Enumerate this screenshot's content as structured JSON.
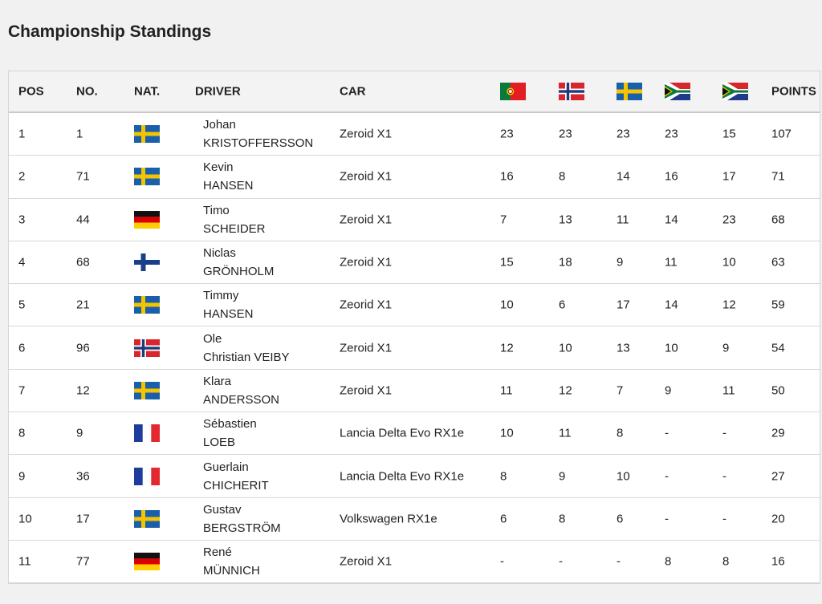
{
  "title": "Championship Standings",
  "table": {
    "header": {
      "pos": "POS",
      "no": "NO.",
      "nat": "NAT.",
      "driver": "DRIVER",
      "car": "CAR",
      "points": "POINTS"
    },
    "rows": [
      [
        1,
        1,
        "Johan",
        "KRISTOFFERSSON",
        "Zeroid X1",
        23,
        23,
        23,
        23,
        15,
        107
      ],
      [
        2,
        71,
        "Kevin",
        "HANSEN",
        "Zeroid X1",
        16,
        8,
        14,
        16,
        17,
        71
      ],
      [
        3,
        44,
        "Timo",
        "SCHEIDER",
        "Zeroid X1",
        7,
        13,
        11,
        14,
        23,
        68
      ],
      [
        4,
        68,
        "Niclas",
        "GRÖNHOLM",
        "Zeroid X1",
        15,
        18,
        9,
        11,
        10,
        63
      ],
      [
        5,
        21,
        "Timmy",
        "HANSEN",
        "Zeorid X1",
        10,
        6,
        17,
        14,
        12,
        59
      ],
      [
        6,
        96,
        "Ole",
        "Christian VEIBY",
        "Zeroid X1",
        12,
        10,
        13,
        10,
        9,
        54
      ],
      [
        7,
        12,
        "Klara",
        "ANDERSSON",
        "Zeroid X1",
        11,
        12,
        7,
        9,
        11,
        50
      ],
      [
        8,
        9,
        "Sébastien",
        "LOEB",
        "Lancia Delta Evo RX1e",
        10,
        11,
        8,
        "-",
        "-",
        29
      ],
      [
        9,
        36,
        "Guerlain",
        "CHICHERIT",
        "Lancia Delta Evo RX1e",
        8,
        9,
        10,
        "-",
        "-",
        27
      ],
      [
        10,
        17,
        "Gustav",
        "BERGSTRÖM",
        "Volkswagen RX1e",
        6,
        8,
        6,
        "-",
        "-",
        20
      ],
      [
        11,
        77,
        "René",
        "MÜNNICH",
        "Zeroid X1",
        "-",
        "-",
        "-",
        8,
        8,
        16
      ]
    ]
  }
}
